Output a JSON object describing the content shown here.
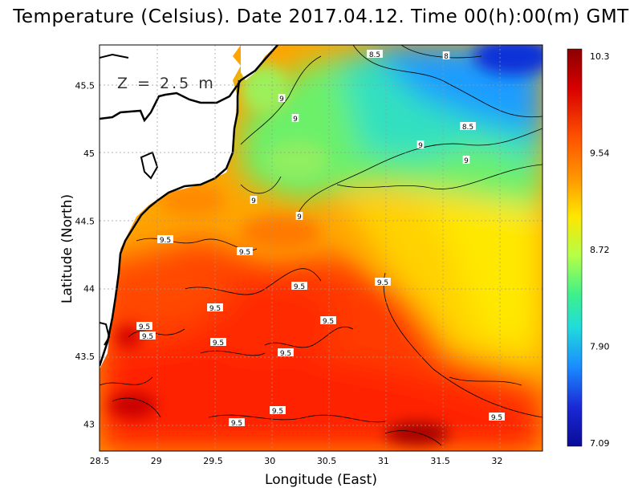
{
  "title": "Temperature (Celsius). Date 2017.04.12. Time 00(h):00(m) GMT",
  "depth_label": "Z = 2.5 m",
  "xlabel": "Longitude (East)",
  "ylabel": "Latitude (North)",
  "x_ticks": [
    "28.5",
    "29",
    "29.5",
    "30",
    "30.5",
    "31",
    "31.5",
    "32"
  ],
  "y_ticks": [
    "45.5",
    "45",
    "44.5",
    "44",
    "43.5",
    "43"
  ],
  "x_range": [
    28.5,
    32.4
  ],
  "y_range": [
    42.8,
    45.8
  ],
  "colorbar": {
    "labels": [
      "10.3",
      "9.54",
      "8.72",
      "7.90",
      "7.09"
    ],
    "colors": [
      "#8b0000",
      "#ff3000",
      "#ff9a00",
      "#ffe600",
      "#c8ff3a",
      "#3cf08c",
      "#20dcdc",
      "#1a8cff",
      "#1a2ad8",
      "#0a0a96"
    ]
  },
  "contour_labels": [
    "8.5",
    "8",
    "8.5",
    "9",
    "9",
    "9",
    "9",
    "9",
    "9",
    "9.5",
    "9.5",
    "9.5",
    "9.5",
    "9.5",
    "9.5",
    "9.5",
    "9.5",
    "9.5",
    "9.5",
    "9.5",
    "9.5",
    "9.5"
  ],
  "colors": {
    "land": "#ffffff",
    "coast": "#000000",
    "grid": "#9a9a9a"
  }
}
